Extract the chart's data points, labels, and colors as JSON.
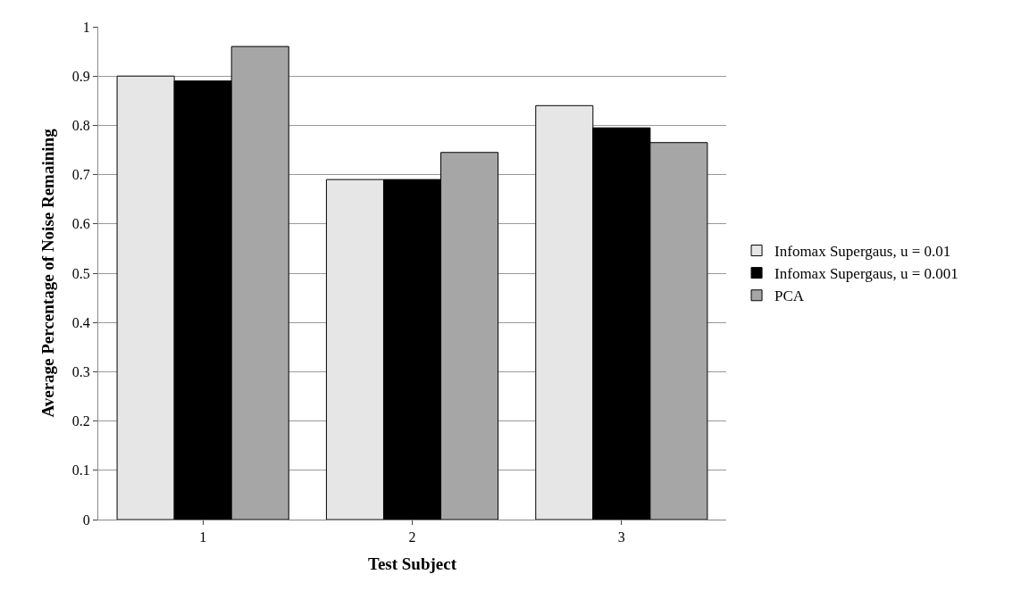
{
  "chart_data": {
    "type": "bar",
    "xlabel": "Test Subject",
    "ylabel": "Average Percentage of Noise Remaining",
    "categories": [
      "1",
      "2",
      "3"
    ],
    "series": [
      {
        "name": "Infomax Supergaus, u = 0.01",
        "color": "#e6e6e6",
        "values": [
          0.9,
          0.69,
          0.84
        ]
      },
      {
        "name": "Infomax Supergaus, u = 0.001",
        "color": "#000000",
        "values": [
          0.89,
          0.69,
          0.795
        ]
      },
      {
        "name": "PCA",
        "color": "#a6a6a6",
        "values": [
          0.96,
          0.745,
          0.765
        ]
      }
    ],
    "ylim": [
      0,
      1
    ],
    "yticks": [
      0,
      0.1,
      0.2,
      0.3,
      0.4,
      0.5,
      0.6,
      0.7,
      0.8,
      0.9,
      1
    ],
    "grid": "y",
    "legend": "right"
  }
}
